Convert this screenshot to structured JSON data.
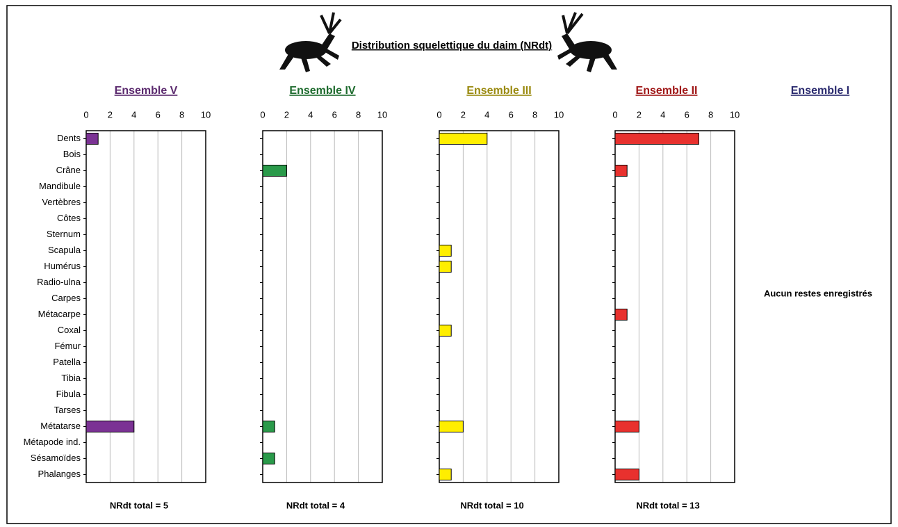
{
  "title": "Distribution squelettique du daim (NRdt)",
  "chart_data": [
    {
      "type": "bar",
      "title": "Ensemble V",
      "title_color": "#5b2a6e",
      "color": "#7b3294",
      "categories": [
        "Dents",
        "Bois",
        "Crâne",
        "Mandibule",
        "Vertèbres",
        "Côtes",
        "Sternum",
        "Scapula",
        "Humérus",
        "Radio-ulna",
        "Carpes",
        "Métacarpe",
        "Coxal",
        "Fémur",
        "Patella",
        "Tibia",
        "Fibula",
        "Tarses",
        "Métatarse",
        "Métapode ind.",
        "Sésamoïdes",
        "Phalanges"
      ],
      "values": [
        1,
        0,
        0,
        0,
        0,
        0,
        0,
        0,
        0,
        0,
        0,
        0,
        0,
        0,
        0,
        0,
        0,
        0,
        4,
        0,
        0,
        0
      ],
      "xlim": [
        0,
        10
      ],
      "xticks": [
        0,
        2,
        4,
        6,
        8,
        10
      ],
      "grid": true,
      "footer": "NRdt total = 5"
    },
    {
      "type": "bar",
      "title": "Ensemble IV",
      "title_color": "#1e6b2e",
      "color": "#2a9a4a",
      "values": [
        0,
        0,
        2,
        0,
        0,
        0,
        0,
        0,
        0,
        0,
        0,
        0,
        0,
        0,
        0,
        0,
        0,
        0,
        1,
        0,
        1,
        0
      ],
      "xlim": [
        0,
        10
      ],
      "xticks": [
        0,
        2,
        4,
        6,
        8,
        10
      ],
      "grid": true,
      "footer": "NRdt total = 4"
    },
    {
      "type": "bar",
      "title": "Ensemble III",
      "title_color": "#9a8a10",
      "color": "#ffee00",
      "values": [
        4,
        0,
        0,
        0,
        0,
        0,
        0,
        1,
        1,
        0,
        0,
        0,
        1,
        0,
        0,
        0,
        0,
        0,
        2,
        0,
        0,
        1
      ],
      "xlim": [
        0,
        10
      ],
      "xticks": [
        0,
        2,
        4,
        6,
        8,
        10
      ],
      "grid": true,
      "footer": "NRdt total = 10"
    },
    {
      "type": "bar",
      "title": "Ensemble II",
      "title_color": "#a01818",
      "color": "#e8312e",
      "values": [
        7,
        0,
        1,
        0,
        0,
        0,
        0,
        0,
        0,
        0,
        0,
        1,
        0,
        0,
        0,
        0,
        0,
        0,
        2,
        0,
        0,
        2
      ],
      "xlim": [
        0,
        10
      ],
      "xticks": [
        0,
        2,
        4,
        6,
        8,
        10
      ],
      "grid": true,
      "footer": "NRdt total = 13"
    },
    {
      "type": "empty",
      "title": "Ensemble I",
      "title_color": "#2a2a6e",
      "annotation": "Aucun restes enregistrés"
    }
  ]
}
